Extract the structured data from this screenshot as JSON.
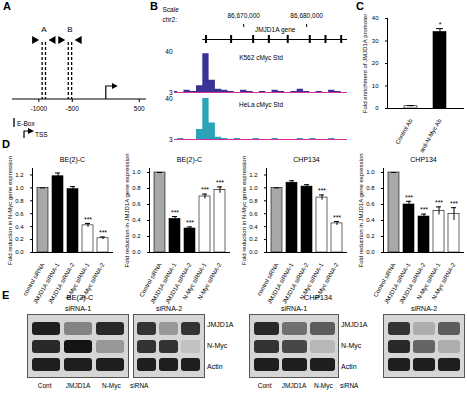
{
  "panel_labels": [
    "A",
    "B",
    "C",
    "D",
    "E"
  ],
  "panel_a": {
    "region_labels": [
      "A",
      "B"
    ],
    "region_eboxes": [
      [
        -950,
        -900
      ],
      [
        -560,
        -510
      ]
    ],
    "scale_range": [
      -1400,
      600
    ],
    "scale_ticks": [
      -1000,
      -500,
      500
    ],
    "tss_position": 0,
    "key": [
      "E-Box",
      "TSS"
    ]
  },
  "panel_b": {
    "scale_text": "Scale",
    "chrom": "chr2:",
    "range": [
      86659000,
      86686500
    ],
    "ticks": [
      {
        "value": 86670000,
        "label": "86,670,000"
      },
      {
        "value": 86680000,
        "label": "86,680,000"
      }
    ],
    "gene": "JMJD1A gene",
    "gene_start": 86663500,
    "gene_end": 86686500,
    "exons": [
      86664000,
      86668000,
      86671500,
      86674000,
      86677000,
      86680500,
      86683000,
      86685500
    ],
    "x": [
      86659000,
      86660000,
      86661000,
      86662000,
      86663000,
      86664000,
      86665000,
      86666000,
      86667000,
      86668000,
      86669000,
      86670000,
      86671000,
      86672000,
      86673000,
      86674000,
      86675000,
      86676000,
      86677000,
      86678000,
      86679000,
      86680000,
      86681000,
      86682000,
      86683000,
      86684000,
      86685000,
      86686000
    ],
    "tracks": [
      {
        "name": "K562 cMyc Std",
        "color": "#3a3396",
        "ylim": [
          3,
          40
        ],
        "yticks": [
          3,
          40
        ],
        "values": [
          4,
          3,
          5,
          4,
          9,
          38,
          14,
          6,
          5,
          4,
          3,
          5,
          4,
          3,
          4,
          3,
          5,
          4,
          3,
          4,
          6,
          4,
          3,
          4,
          3,
          5,
          4,
          3
        ]
      },
      {
        "name": "HeLa cMyc Std",
        "color": "#29a3b5",
        "ylim": [
          3,
          40
        ],
        "yticks": [
          3,
          40
        ],
        "values": [
          3,
          4,
          3,
          3,
          12,
          40,
          18,
          5,
          4,
          3,
          4,
          3,
          3,
          4,
          3,
          3,
          4,
          3,
          3,
          3,
          4,
          3,
          4,
          3,
          3,
          4,
          3,
          3
        ]
      }
    ]
  },
  "chart_data": [
    {
      "type": "bar",
      "categories": [
        "Control Ab",
        "anti-N-Myc Ab"
      ],
      "values": [
        1,
        34
      ],
      "errors": [
        0.3,
        1.5
      ],
      "colors": [
        "#ffffff",
        "#000000"
      ],
      "y_label": "Fold enrichment of JMJD1A promoter",
      "ylim": [
        0,
        40
      ],
      "yticks": [
        0,
        10,
        20,
        30,
        40
      ],
      "significance": [
        null,
        "*"
      ]
    },
    {
      "type": "bar",
      "title": "BE(2)-C",
      "categories": [
        "control siRNA",
        "JMJD1A siRNA-1",
        "JMJD1A siRNA-2",
        "N-Myc siRNA-1",
        "N-Myc siRNA-2"
      ],
      "values": [
        1,
        1.18,
        0.98,
        0.42,
        0.22
      ],
      "errors": [
        0,
        0.05,
        0.04,
        0.03,
        0.02
      ],
      "colors": [
        "#a8a8a8",
        "#000000",
        "#000000",
        "#ffffff",
        "#ffffff"
      ],
      "y_label": "Fold reduction in N-Myc gene expression",
      "ylim": [
        0,
        1.3
      ],
      "yticks": [
        {
          "value": 0,
          "label": "0.0"
        },
        0.2,
        0.4,
        0.6,
        0.8,
        {
          "value": 1,
          "label": "1.0"
        },
        1.2
      ],
      "significance": [
        null,
        null,
        null,
        "***",
        "***"
      ]
    },
    {
      "type": "bar",
      "title": "BE(2)-C",
      "categories": [
        "Control siRNA",
        "JMJD1A siRNA-1",
        "JMJD1A siRNA-2",
        "N-Myc siRNA-1",
        "N-Myc siRNA-2"
      ],
      "values": [
        1,
        0.42,
        0.3,
        0.7,
        0.78
      ],
      "errors": [
        0,
        0.03,
        0.02,
        0.03,
        0.04
      ],
      "colors": [
        "#a8a8a8",
        "#000000",
        "#000000",
        "#ffffff",
        "#ffffff"
      ],
      "y_label": "Fold reduction in JMJD1A gene expression",
      "ylim": [
        0,
        1.05
      ],
      "yticks": [
        {
          "value": 0,
          "label": "0.0"
        },
        0.2,
        0.4,
        0.6,
        0.8,
        {
          "value": 1,
          "label": "1.0"
        }
      ],
      "significance": [
        null,
        "***",
        "***",
        "***",
        "***"
      ]
    },
    {
      "type": "bar",
      "title": "CHP134",
      "categories": [
        "control siRNA",
        "JMJD1A siRNA-1",
        "JMJD1A siRNA-2",
        "N-Myc siRNA-1",
        "N-Myc siRNA-2"
      ],
      "values": [
        1,
        1.08,
        1.02,
        0.85,
        0.45
      ],
      "errors": [
        0,
        0.03,
        0.03,
        0.04,
        0.03
      ],
      "colors": [
        "#a8a8a8",
        "#000000",
        "#000000",
        "#ffffff",
        "#ffffff"
      ],
      "y_label": "Fold reduction in N-Myc gene expression",
      "ylim": [
        0,
        1.3
      ],
      "yticks": [
        {
          "value": 0,
          "label": "0.0"
        },
        0.2,
        0.4,
        0.6,
        0.8,
        {
          "value": 1,
          "label": "1.0"
        },
        1.2
      ],
      "significance": [
        null,
        null,
        null,
        "***",
        "***"
      ]
    },
    {
      "type": "bar",
      "title": "CHP134",
      "categories": [
        "Control siRNA",
        "JMJD1A siRNA-1",
        "JMJD1A siRNA-2",
        "N-Myc siRNA-1",
        "N-Myc siRNA-2"
      ],
      "values": [
        1,
        0.6,
        0.45,
        0.52,
        0.48
      ],
      "errors": [
        0,
        0.04,
        0.03,
        0.05,
        0.08
      ],
      "colors": [
        "#a8a8a8",
        "#000000",
        "#000000",
        "#ffffff",
        "#ffffff"
      ],
      "y_label": "Fold reduction in JMJD1A gene expression",
      "ylim": [
        0,
        1.05
      ],
      "yticks": [
        {
          "value": 0,
          "label": "0.0"
        },
        0.2,
        0.4,
        0.6,
        0.8,
        {
          "value": 1,
          "label": "1.0"
        }
      ],
      "significance": [
        null,
        "***",
        "***",
        "***",
        "***"
      ]
    }
  ],
  "panel_e": {
    "groups": [
      {
        "title": "BE(2)-C",
        "blots": [
          {
            "title": "siRNA-1",
            "bands": [
              [
                0.9,
                0.4,
                0.85
              ],
              [
                0.85,
                0.95,
                0.3
              ],
              [
                0.9,
                0.9,
                0.9
              ]
            ]
          },
          {
            "title": "siRNA-2",
            "bands": [
              [
                0.8,
                0.3,
                0.8
              ],
              [
                0.8,
                0.8,
                0.1
              ],
              [
                0.9,
                0.9,
                0.9
              ]
            ]
          }
        ]
      },
      {
        "title": "CHP134",
        "blots": [
          {
            "title": "siRNA-1",
            "bands": [
              [
                0.85,
                0.5,
                0.6
              ],
              [
                0.8,
                0.7,
                0.15
              ],
              [
                0.9,
                0.9,
                0.9
              ]
            ]
          },
          {
            "title": "siRNA-2",
            "bands": [
              [
                0.8,
                0.2,
                0.6
              ],
              [
                0.85,
                0.55,
                0.2
              ],
              [
                0.9,
                0.9,
                0.9
              ]
            ]
          }
        ]
      }
    ],
    "row_labels": [
      "JMJD1A",
      "N-Myc",
      "Actin"
    ],
    "lane_labels": [
      "Cont",
      "JMJD1A",
      "N-Myc"
    ],
    "lane_suffix": "siRNA"
  }
}
